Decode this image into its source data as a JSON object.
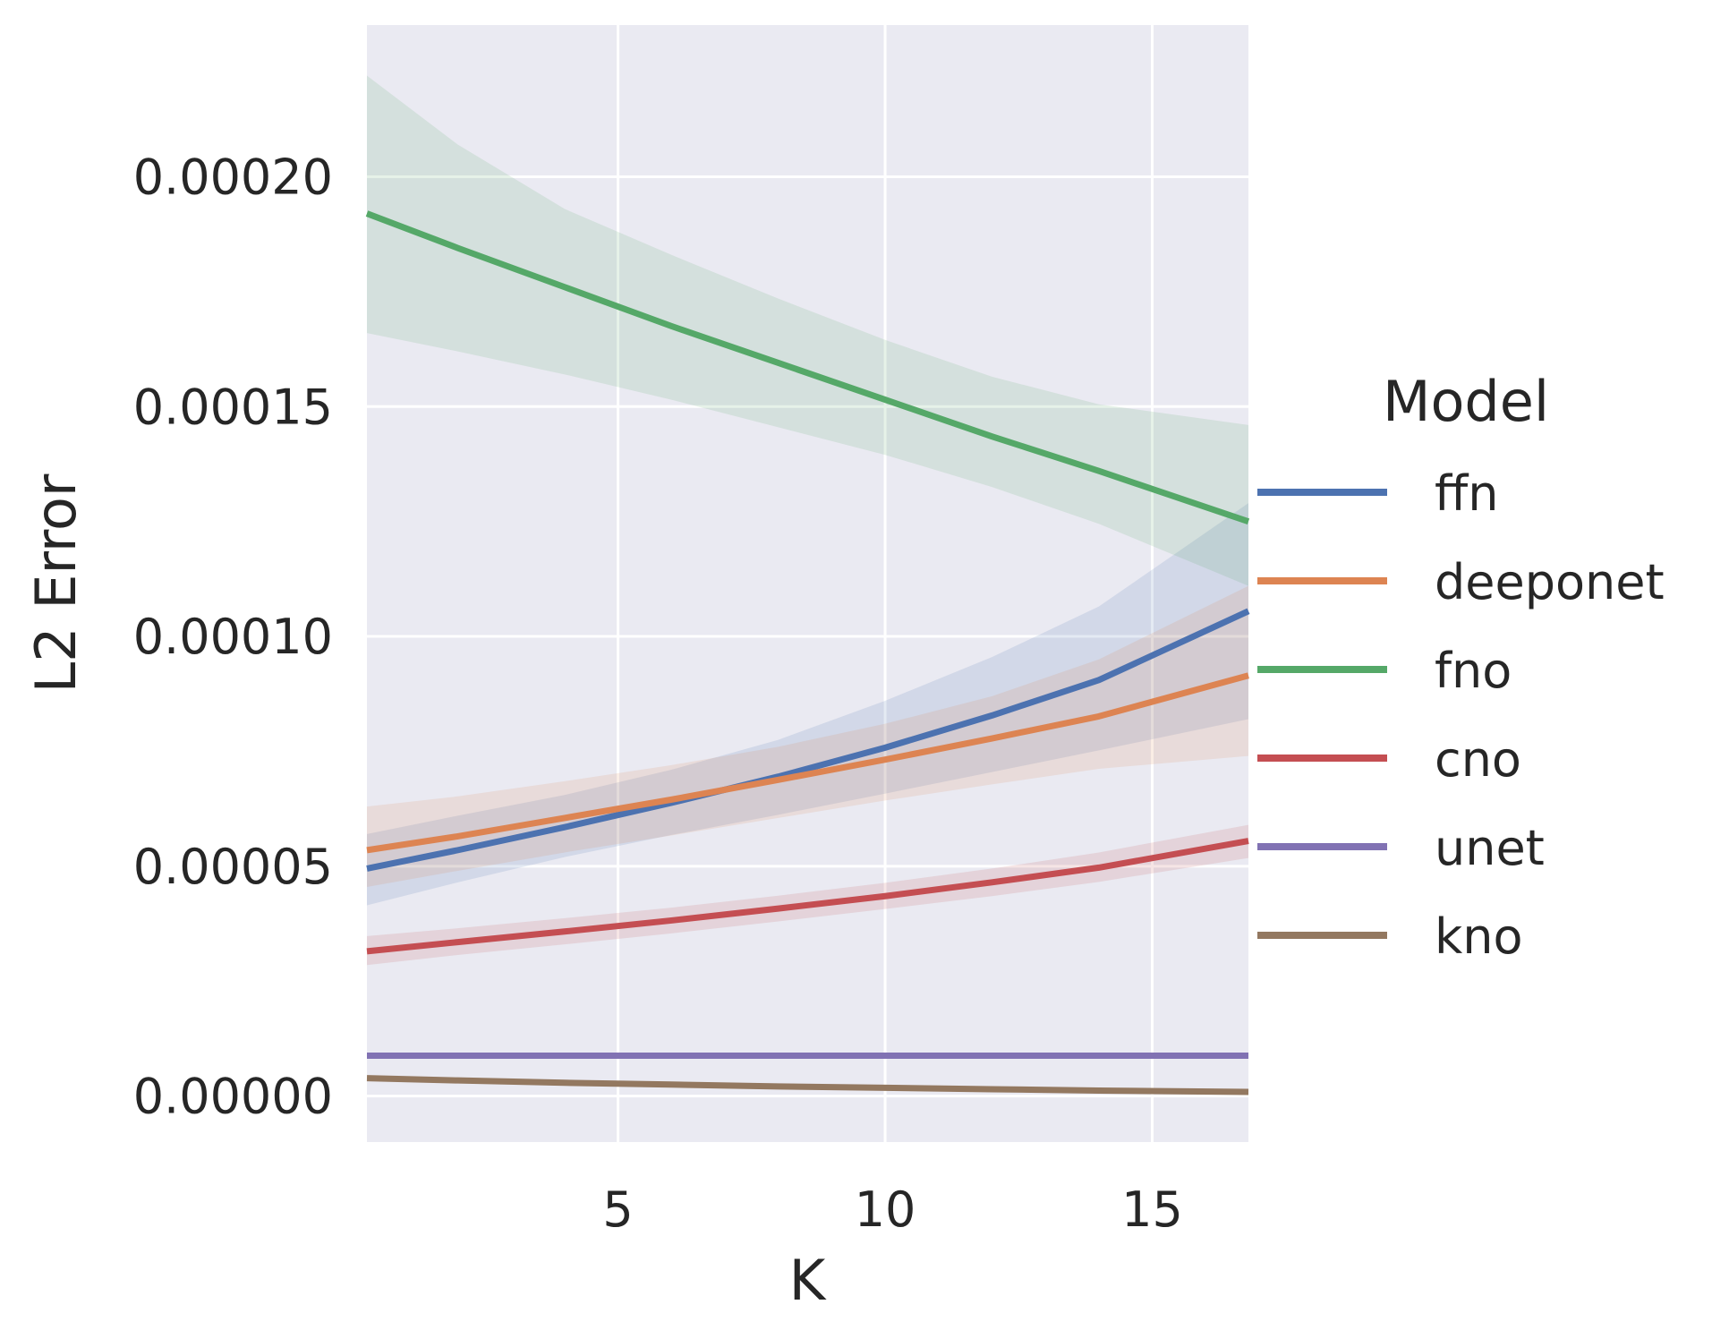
{
  "chart_data": {
    "type": "line",
    "title": "",
    "xlabel": "K",
    "ylabel": "L2 Error",
    "xlim": [
      0.3,
      16.8
    ],
    "ylim": [
      -1e-05,
      0.000233
    ],
    "xticks": [
      5,
      10,
      15
    ],
    "xtick_labels": [
      "5",
      "10",
      "15"
    ],
    "yticks": [
      0.0,
      5e-05,
      0.0001,
      0.00015,
      0.0002
    ],
    "ytick_labels": [
      "0.00000",
      "0.00005",
      "0.00010",
      "0.00015",
      "0.00020"
    ],
    "grid": true,
    "legend": {
      "title": "Model",
      "position": "right"
    },
    "background": "#eaeaf2",
    "series": [
      {
        "name": "ffn",
        "color": "#4c72b0",
        "x": [
          0.3,
          2,
          4,
          6,
          8,
          10,
          12,
          14,
          16.8
        ],
        "y": [
          4.95e-05,
          5.35e-05,
          5.85e-05,
          6.38e-05,
          6.95e-05,
          7.58e-05,
          8.28e-05,
          9.05e-05,
          0.0001055
        ],
        "lower": [
          4.15e-05,
          4.65e-05,
          5.2e-05,
          5.68e-05,
          6.12e-05,
          6.58e-05,
          7.05e-05,
          7.52e-05,
          8.2e-05
        ],
        "upper": [
          5.7e-05,
          6.1e-05,
          6.55e-05,
          7.1e-05,
          7.75e-05,
          8.6e-05,
          9.55e-05,
          0.0001065,
          0.000129
        ]
      },
      {
        "name": "deeponet",
        "color": "#dd8452",
        "x": [
          0.3,
          2,
          4,
          6,
          8,
          10,
          12,
          14,
          16.8
        ],
        "y": [
          5.35e-05,
          5.65e-05,
          6.05e-05,
          6.45e-05,
          6.88e-05,
          7.32e-05,
          7.78e-05,
          8.26e-05,
          9.15e-05
        ],
        "lower": [
          4.55e-05,
          4.9e-05,
          5.3e-05,
          5.67e-05,
          6.05e-05,
          6.43e-05,
          6.78e-05,
          7.12e-05,
          7.4e-05
        ],
        "upper": [
          6.3e-05,
          6.52e-05,
          6.85e-05,
          7.2e-05,
          7.6e-05,
          8.1e-05,
          8.7e-05,
          9.5e-05,
          0.000111
        ]
      },
      {
        "name": "fno",
        "color": "#55a868",
        "x": [
          0.3,
          2,
          4,
          6,
          8,
          10,
          12,
          14,
          16.8
        ],
        "y": [
          0.000192,
          0.0001845,
          0.000176,
          0.0001675,
          0.0001595,
          0.0001515,
          0.0001435,
          0.000136,
          0.000125
        ],
        "lower": [
          0.000166,
          0.000162,
          0.000157,
          0.0001515,
          0.0001455,
          0.0001395,
          0.0001325,
          0.0001245,
          0.000111
        ],
        "upper": [
          0.000222,
          0.000207,
          0.000193,
          0.000183,
          0.0001735,
          0.0001645,
          0.0001565,
          0.0001505,
          0.000146
        ]
      },
      {
        "name": "cno",
        "color": "#c44e52",
        "x": [
          0.3,
          2,
          4,
          6,
          8,
          10,
          12,
          14,
          16.8
        ],
        "y": [
          3.15e-05,
          3.35e-05,
          3.58e-05,
          3.82e-05,
          4.08e-05,
          4.35e-05,
          4.65e-05,
          4.97e-05,
          5.55e-05
        ],
        "lower": [
          2.85e-05,
          3.07e-05,
          3.3e-05,
          3.54e-05,
          3.8e-05,
          4.07e-05,
          4.35e-05,
          4.66e-05,
          5.18e-05
        ],
        "upper": [
          3.48e-05,
          3.65e-05,
          3.87e-05,
          4.1e-05,
          4.36e-05,
          4.64e-05,
          4.95e-05,
          5.3e-05,
          5.9e-05
        ]
      },
      {
        "name": "unet",
        "color": "#8172b3",
        "x": [
          0.3,
          16.8
        ],
        "y": [
          8.8e-06,
          8.8e-06
        ]
      },
      {
        "name": "kno",
        "color": "#937860",
        "x": [
          0.3,
          2,
          4,
          6,
          8,
          10,
          12,
          14,
          16.8
        ],
        "y": [
          3.9e-06,
          3.4e-06,
          2.9e-06,
          2.5e-06,
          2.1e-06,
          1.8e-06,
          1.5e-06,
          1.2e-06,
          9e-07
        ]
      }
    ]
  }
}
